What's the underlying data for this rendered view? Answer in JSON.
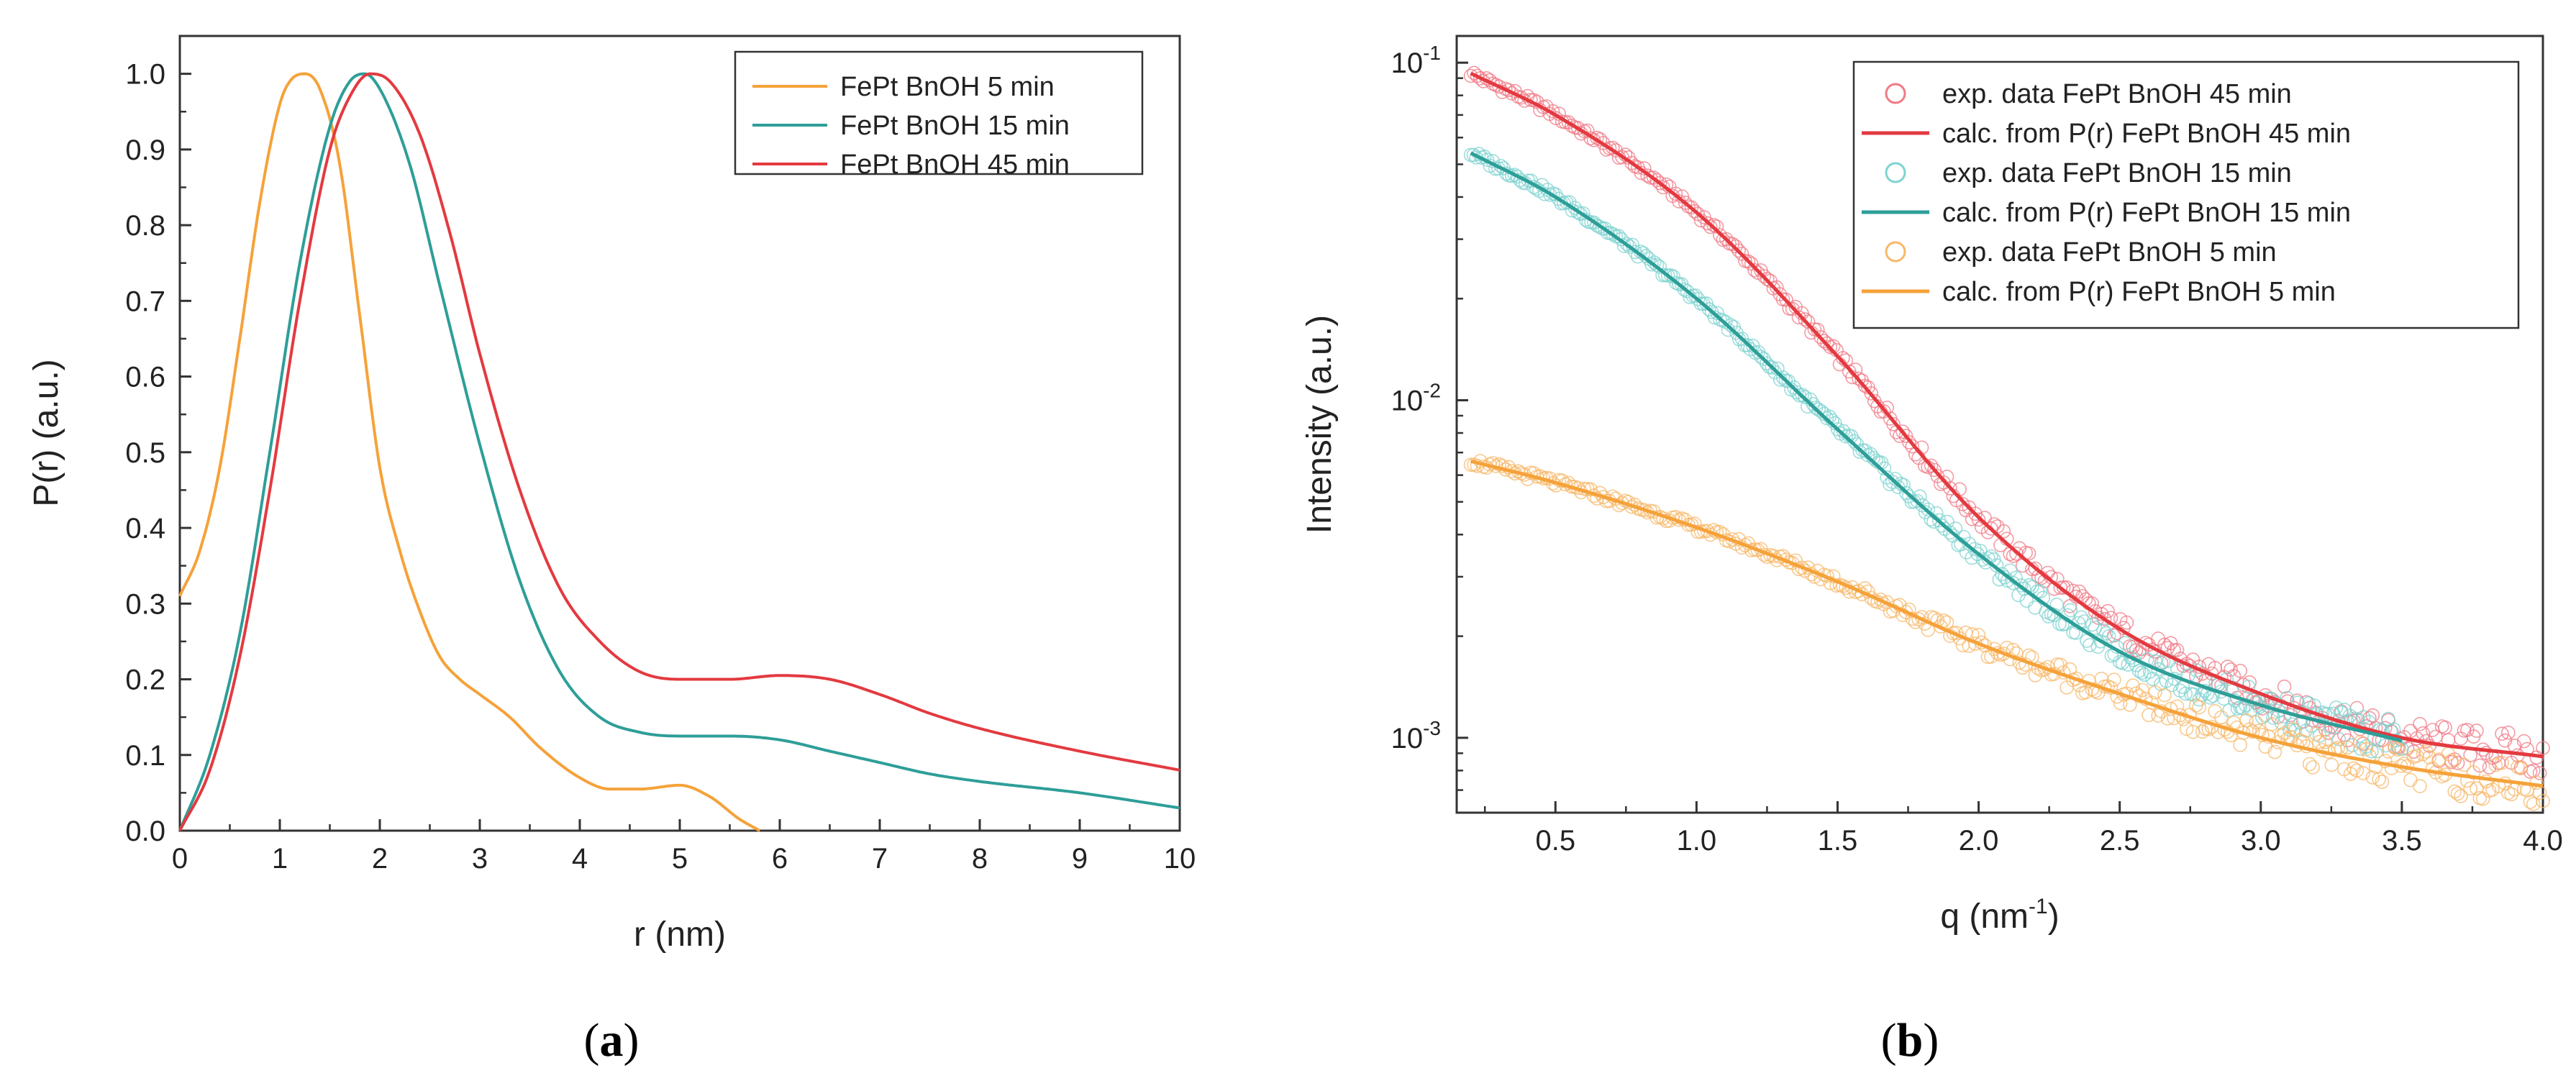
{
  "colors": {
    "orange": "#F5A23A",
    "teal": "#2E9E98",
    "red": "#E33A40",
    "exp_red": "#F07A86",
    "exp_teal": "#7FD3D0",
    "exp_orange": "#F7B86A"
  },
  "chart_data": [
    {
      "type": "line",
      "panel": "a",
      "panel_label": {
        "open": "(",
        "letter": "a",
        "close": ")"
      },
      "xlabel": "r (nm)",
      "ylabel": "P(r) (a.u.)",
      "xlim": [
        0,
        10
      ],
      "ylim": [
        0,
        1.05
      ],
      "xticks": [
        "0",
        "1",
        "2",
        "3",
        "4",
        "5",
        "6",
        "7",
        "8",
        "9",
        "10"
      ],
      "yticks": [
        "0.0",
        "0.1",
        "0.2",
        "0.3",
        "0.4",
        "0.5",
        "0.6",
        "0.7",
        "0.8",
        "0.9",
        "1.0"
      ],
      "legend_position": "top-right",
      "series": [
        {
          "name": "FePt BnOH 5 min",
          "color": "#F5A23A",
          "x": [
            0,
            0.2,
            0.4,
            0.6,
            0.8,
            1.0,
            1.1,
            1.25,
            1.4,
            1.6,
            1.8,
            2.0,
            2.2,
            2.4,
            2.6,
            2.8,
            3.0,
            3.3,
            3.6,
            4.0,
            4.3,
            4.6,
            5.0,
            5.3,
            5.6,
            5.8
          ],
          "y": [
            0.31,
            0.37,
            0.48,
            0.65,
            0.83,
            0.96,
            0.99,
            1.0,
            0.98,
            0.88,
            0.68,
            0.48,
            0.37,
            0.29,
            0.23,
            0.2,
            0.18,
            0.15,
            0.11,
            0.07,
            0.055,
            0.055,
            0.06,
            0.045,
            0.015,
            0.0
          ]
        },
        {
          "name": "FePt BnOH 15 min",
          "color": "#2E9E98",
          "x": [
            0,
            0.3,
            0.6,
            0.9,
            1.2,
            1.5,
            1.7,
            1.85,
            2.0,
            2.3,
            2.6,
            3.0,
            3.4,
            3.8,
            4.2,
            4.6,
            5.0,
            5.5,
            6.0,
            6.5,
            7.0,
            7.5,
            8.0,
            9.0,
            10.0
          ],
          "y": [
            0.0,
            0.1,
            0.26,
            0.5,
            0.75,
            0.93,
            0.99,
            1.0,
            0.98,
            0.88,
            0.72,
            0.51,
            0.33,
            0.21,
            0.15,
            0.13,
            0.125,
            0.125,
            0.12,
            0.105,
            0.09,
            0.075,
            0.065,
            0.05,
            0.03
          ]
        },
        {
          "name": "FePt BnOH 45 min",
          "color": "#E33A40",
          "x": [
            0,
            0.3,
            0.6,
            0.9,
            1.2,
            1.5,
            1.7,
            1.9,
            2.1,
            2.4,
            2.7,
            3.0,
            3.4,
            3.8,
            4.2,
            4.6,
            5.0,
            5.5,
            6.0,
            6.5,
            7.0,
            7.5,
            8.0,
            9.0,
            10.0
          ],
          "y": [
            0.0,
            0.08,
            0.23,
            0.45,
            0.7,
            0.9,
            0.97,
            1.0,
            0.99,
            0.92,
            0.79,
            0.63,
            0.45,
            0.32,
            0.25,
            0.21,
            0.2,
            0.2,
            0.205,
            0.2,
            0.18,
            0.155,
            0.135,
            0.105,
            0.08
          ]
        }
      ]
    },
    {
      "type": "line",
      "panel": "b",
      "panel_label": {
        "open": "(",
        "letter": "b",
        "close": ")"
      },
      "xlabel": {
        "text": "q (nm",
        "sup": "-1",
        "end": ")"
      },
      "ylabel": "Intensity (a.u.)",
      "xscale": "linear",
      "yscale": "log",
      "xlim": [
        0.15,
        4.0
      ],
      "ylim": [
        0.0006,
        0.12
      ],
      "xticks": [
        "0.5",
        "1.0",
        "1.5",
        "2.0",
        "2.5",
        "3.0",
        "3.5",
        "4.0"
      ],
      "yticks": [
        {
          "base": "10",
          "exp": "-1",
          "value": 0.1
        },
        {
          "base": "10",
          "exp": "-2",
          "value": 0.01
        },
        {
          "base": "10",
          "exp": "-3",
          "value": 0.001
        }
      ],
      "legend_position": "top-right",
      "series": [
        {
          "name": "exp. data FePt BnOH 45 min",
          "kind": "scatter",
          "color": "#F07A86",
          "x": [
            0.2,
            0.5,
            1.0,
            1.5,
            2.0,
            2.5,
            3.0,
            3.5,
            4.0
          ],
          "y": [
            0.093,
            0.07,
            0.036,
            0.0135,
            0.0045,
            0.0021,
            0.00135,
            0.001,
            0.00088
          ]
        },
        {
          "name": "calc. from P(r) FePt BnOH 45 min",
          "kind": "line",
          "color": "#E33A40",
          "x": [
            0.2,
            0.5,
            1.0,
            1.5,
            2.0,
            2.5,
            3.0,
            3.5,
            4.0
          ],
          "y": [
            0.093,
            0.07,
            0.036,
            0.0135,
            0.0045,
            0.0021,
            0.00135,
            0.001,
            0.00088
          ]
        },
        {
          "name": "exp. data FePt BnOH 15 min",
          "kind": "scatter",
          "color": "#7FD3D0",
          "x": [
            0.2,
            0.5,
            1.0,
            1.5,
            2.0,
            2.5,
            3.0,
            3.5
          ],
          "y": [
            0.054,
            0.04,
            0.02,
            0.0082,
            0.0035,
            0.0018,
            0.00125,
            0.00098
          ]
        },
        {
          "name": "calc. from P(r) FePt BnOH 15 min",
          "kind": "line",
          "color": "#2E9E98",
          "x": [
            0.2,
            0.5,
            1.0,
            1.5,
            2.0,
            2.5,
            3.0,
            3.5
          ],
          "y": [
            0.054,
            0.04,
            0.02,
            0.0082,
            0.0035,
            0.0018,
            0.00125,
            0.00098
          ]
        },
        {
          "name": "exp. data FePt BnOH 5 min",
          "kind": "scatter",
          "color": "#F7B86A",
          "x": [
            0.2,
            0.5,
            1.0,
            1.5,
            2.0,
            2.5,
            3.0,
            3.5,
            4.0
          ],
          "y": [
            0.0066,
            0.0057,
            0.0042,
            0.0029,
            0.0019,
            0.00135,
            0.001,
            0.00082,
            0.00072
          ]
        },
        {
          "name": "calc. from P(r) FePt BnOH 5 min",
          "kind": "line",
          "color": "#F5A23A",
          "x": [
            0.2,
            0.5,
            1.0,
            1.5,
            2.0,
            2.5,
            3.0,
            3.5,
            4.0
          ],
          "y": [
            0.0066,
            0.0057,
            0.0042,
            0.0029,
            0.0019,
            0.00135,
            0.001,
            0.00082,
            0.00072
          ]
        }
      ]
    }
  ]
}
